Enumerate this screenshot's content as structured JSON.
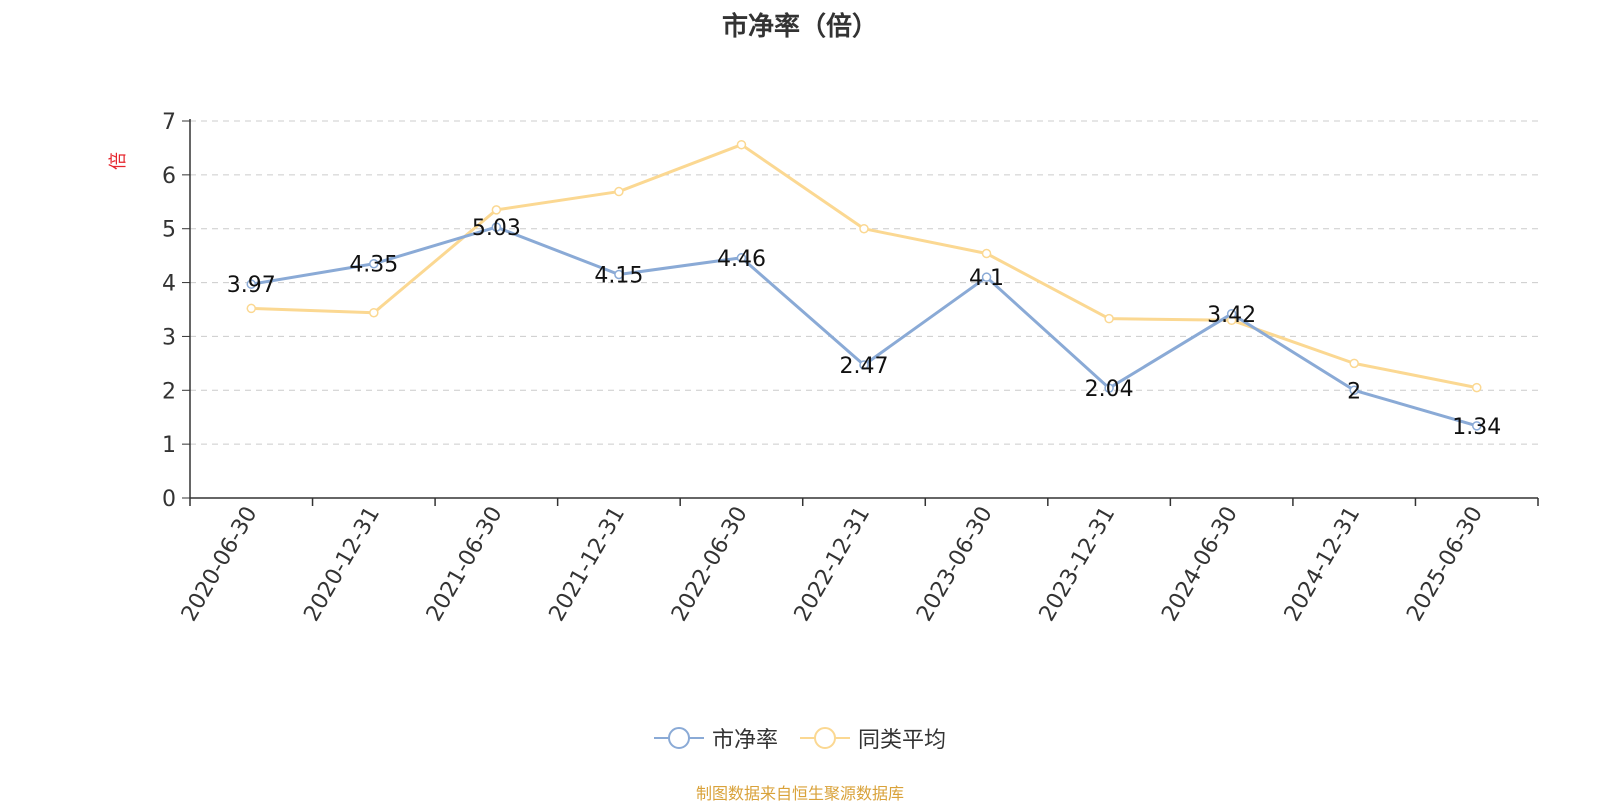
{
  "chart_data": {
    "type": "line",
    "title": "市净率（倍）",
    "ylabel": "倍",
    "xlabel": "",
    "ylim": [
      0,
      7
    ],
    "yticks": [
      0,
      1,
      2,
      3,
      4,
      5,
      6,
      7
    ],
    "grid": true,
    "legend_position": "bottom",
    "categories": [
      "2020-06-30",
      "2020-12-31",
      "2021-06-30",
      "2021-12-31",
      "2022-06-30",
      "2022-12-31",
      "2023-06-30",
      "2023-12-31",
      "2024-06-30",
      "2024-12-31",
      "2025-06-30"
    ],
    "series": [
      {
        "name": "市净率",
        "color": "#8aaad6",
        "values": [
          3.97,
          4.35,
          5.03,
          4.15,
          4.46,
          2.47,
          4.1,
          2.04,
          3.42,
          2,
          1.34
        ],
        "labels": [
          "3.97",
          "4.35",
          "5.03",
          "4.15",
          "4.46",
          "2.47",
          "4.1",
          "2.04",
          "3.42",
          "2",
          "1.34"
        ]
      },
      {
        "name": "同类平均",
        "color": "#fbd892",
        "values": [
          3.52,
          3.44,
          5.35,
          5.69,
          6.56,
          5.0,
          4.54,
          3.33,
          3.3,
          2.5,
          2.05
        ]
      }
    ],
    "ylabel_color": "#e6262e"
  },
  "source_note": "制图数据来自恒生聚源数据库",
  "source_note_color": "#d9a23a"
}
